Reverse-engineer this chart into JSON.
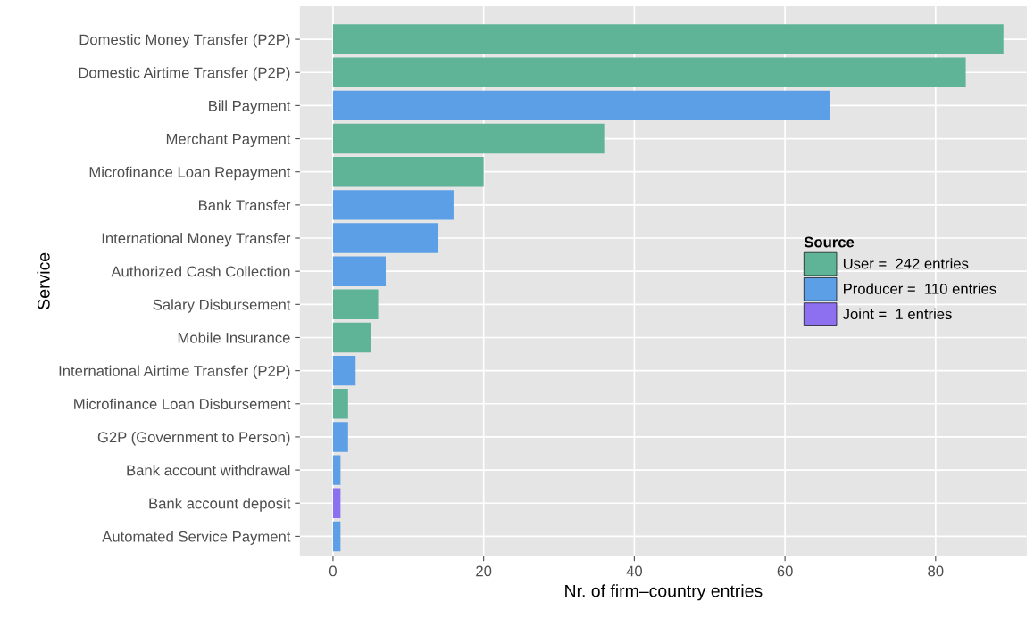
{
  "chart_data": {
    "type": "bar",
    "orientation": "horizontal",
    "categories": [
      "Domestic Money Transfer (P2P)",
      "Domestic Airtime Transfer (P2P)",
      "Bill Payment",
      "Merchant Payment",
      "Microfinance Loan Repayment",
      "Bank Transfer",
      "International Money Transfer",
      "Authorized Cash Collection",
      "Salary Disbursement",
      "Mobile Insurance",
      "International Airtime Transfer (P2P)",
      "Microfinance Loan Disbursement",
      "G2P (Government to Person)",
      "Bank account withdrawal",
      "Bank account deposit",
      "Automated Service Payment"
    ],
    "series": [
      {
        "name": "User =  242 entries",
        "color": "#5fb396",
        "values": [
          89,
          84,
          null,
          36,
          20,
          null,
          null,
          null,
          6,
          5,
          null,
          2,
          null,
          null,
          null,
          null
        ]
      },
      {
        "name": "Producer =  110 entries",
        "color": "#5c9fe6",
        "values": [
          null,
          null,
          66,
          null,
          null,
          16,
          14,
          7,
          null,
          null,
          3,
          null,
          2,
          1,
          null,
          1
        ]
      },
      {
        "name": "Joint =  1 entries",
        "color": "#8c70f0",
        "values": [
          null,
          null,
          null,
          null,
          null,
          null,
          null,
          null,
          null,
          null,
          null,
          null,
          null,
          null,
          1,
          null
        ]
      }
    ],
    "xlim": [
      -4.4,
      92.1
    ],
    "xticks": [
      0,
      20,
      40,
      60,
      80
    ],
    "xlabel": "Nr. of firm–country entries",
    "ylabel": "Service",
    "legend_title": "Source",
    "legend": "right",
    "grid": true
  }
}
